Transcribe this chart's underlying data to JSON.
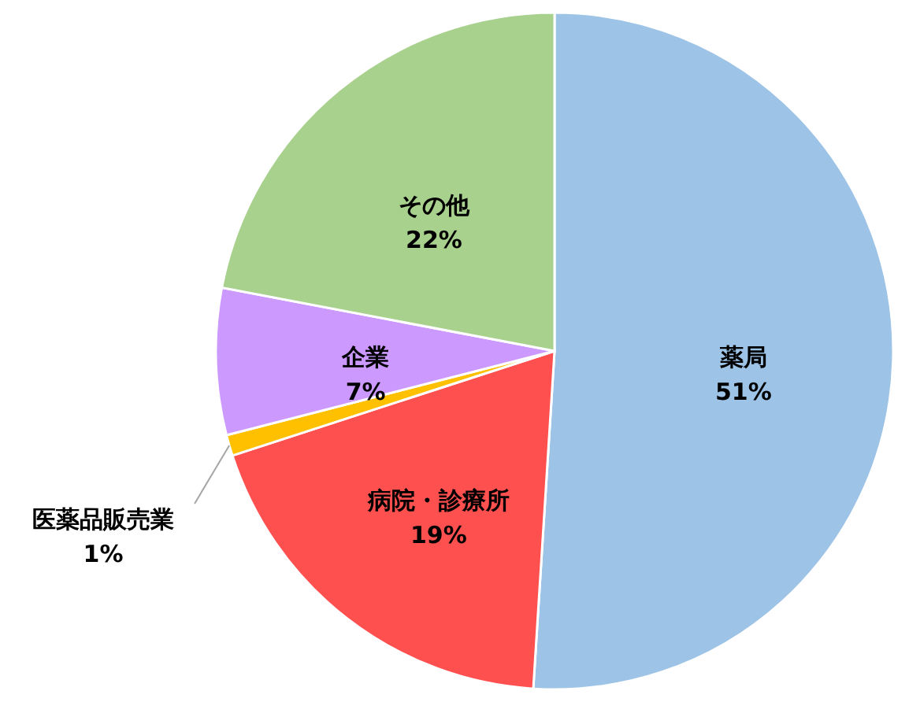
{
  "chart_data": {
    "type": "pie",
    "categories": [
      "薬局",
      "病院・診療所",
      "医薬品販売業",
      "企業",
      "その他"
    ],
    "values": [
      51,
      19,
      1,
      7,
      22
    ],
    "value_labels": [
      "51%",
      "19%",
      "1%",
      "7%",
      "22%"
    ],
    "colors": [
      "#9dc3e6",
      "#ff5050",
      "#ffc000",
      "#cc99ff",
      "#a9d18e"
    ]
  }
}
